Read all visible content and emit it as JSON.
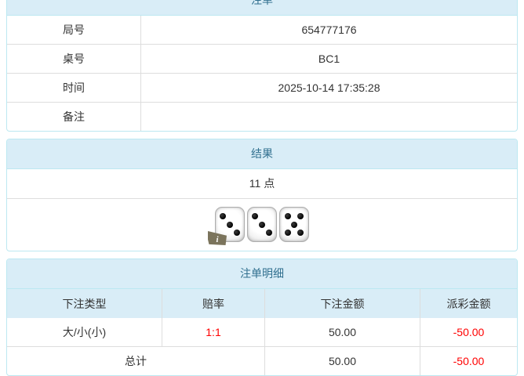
{
  "colors": {
    "panel_border": "#bce8f1",
    "heading_background": "#d9edf7",
    "heading_text": "#31708f",
    "cell_border": "#dddddd",
    "body_text": "#333333",
    "negative_value": "#ff0000"
  },
  "panel_bet": {
    "title": "注单",
    "rows": [
      {
        "label": "局号",
        "value": "654777176"
      },
      {
        "label": "桌号",
        "value": "BC1"
      },
      {
        "label": "时间",
        "value": "2025-10-14 17:35:28"
      },
      {
        "label": "备注",
        "value": ""
      }
    ]
  },
  "panel_result": {
    "title": "结果",
    "points": "11 点",
    "dice": [
      3,
      3,
      5
    ],
    "info_icon": "i"
  },
  "panel_detail": {
    "title": "注单明细",
    "headers": [
      "下注类型",
      "赔率",
      "下注金额",
      "派彩金额"
    ],
    "bet_row": {
      "type": "大/小(小)",
      "odds": "1:1",
      "bet_amount": "50.00",
      "payout_amount": "-50.00"
    },
    "total_row": {
      "label": "总计",
      "bet_amount": "50.00",
      "payout_amount": "-50.00"
    }
  }
}
